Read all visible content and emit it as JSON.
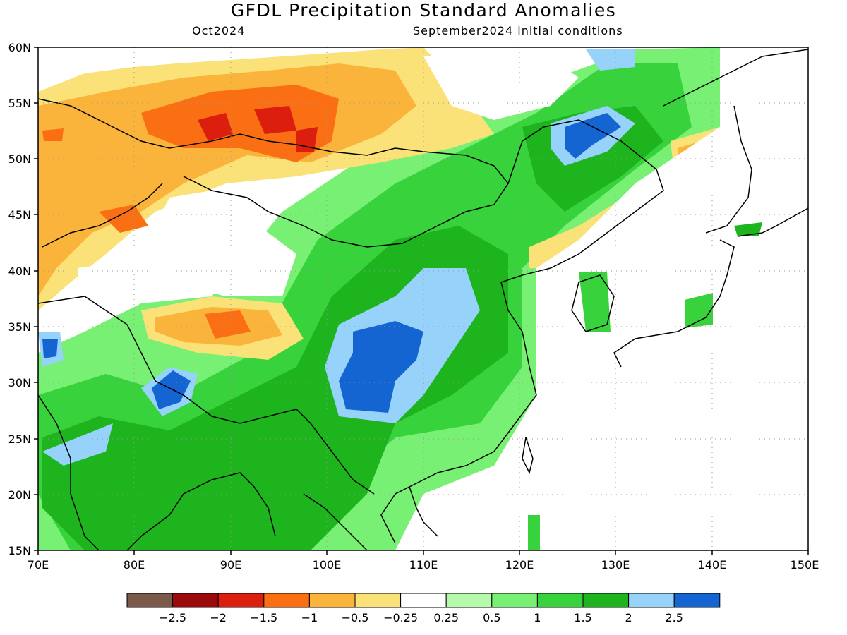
{
  "title": "GFDL Precipitation Standard Anomalies",
  "subtitle_left": "Oct2024",
  "subtitle_right": "September2024 initial conditions",
  "lat_labels": [
    "60N",
    "55N",
    "50N",
    "45N",
    "40N",
    "35N",
    "30N",
    "25N",
    "20N",
    "15N"
  ],
  "lon_labels": [
    "70E",
    "80E",
    "90E",
    "100E",
    "110E",
    "120E",
    "130E",
    "140E",
    "150E"
  ],
  "legend": {
    "colors": [
      "#7b5a4b",
      "#9b0a0a",
      "#dc1e0e",
      "#fa6e14",
      "#fab43c",
      "#fae178",
      "#ffffff",
      "#b4faaa",
      "#78f073",
      "#37d23c",
      "#1eb41e",
      "#96d2fa",
      "#1464d2"
    ],
    "labels": [
      "−2.5",
      "−2",
      "−1.5",
      "−1",
      "−0.5",
      "−0.25",
      "0.25",
      "0.5",
      "1",
      "1.5",
      "2",
      "2.5"
    ]
  },
  "map": {
    "lon_range": [
      70,
      150
    ],
    "lat_range": [
      15,
      60
    ]
  }
}
